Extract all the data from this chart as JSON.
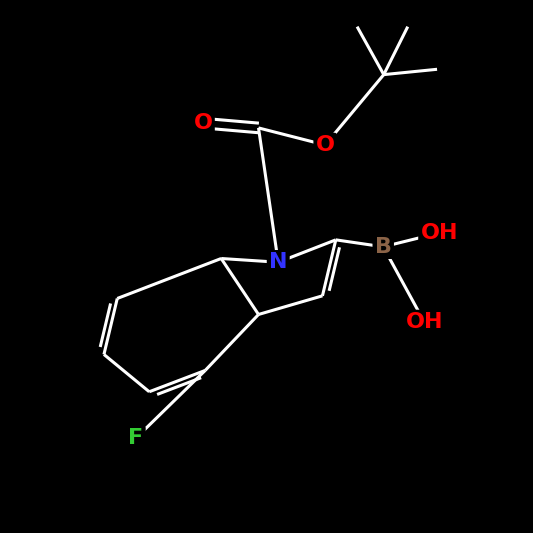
{
  "background_color": "#000000",
  "bond_color": "#ffffff",
  "atom_colors": {
    "N": "#3333ff",
    "O": "#ff0000",
    "F": "#33cc33",
    "B": "#8b6347"
  },
  "font_size": 16,
  "line_width": 2.2
}
